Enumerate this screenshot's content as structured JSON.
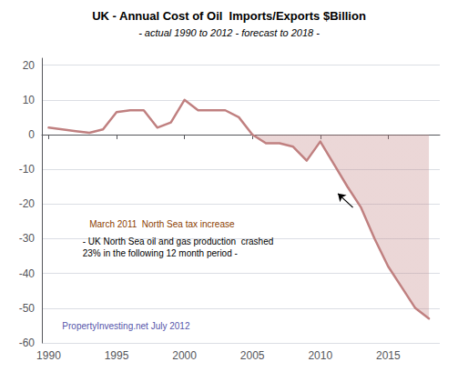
{
  "chart_data": {
    "type": "line",
    "title": "UK - Annual Cost of Oil  Imports/Exports $Billion",
    "subtitle": "- actual 1990 to 2012 - forecast to 2018 -",
    "x": [
      1990,
      1991,
      1992,
      1993,
      1994,
      1995,
      1996,
      1997,
      1998,
      1999,
      2000,
      2001,
      2002,
      2003,
      2004,
      2005,
      2006,
      2007,
      2008,
      2009,
      2010,
      2011,
      2012,
      2013,
      2014,
      2015,
      2016,
      2017,
      2018
    ],
    "values": [
      2.0,
      1.5,
      1.0,
      0.5,
      1.5,
      6.5,
      7.0,
      7.0,
      2.0,
      3.5,
      10.0,
      7.0,
      7.0,
      7.0,
      5.0,
      0.0,
      -2.5,
      -2.5,
      -3.5,
      -7.5,
      -2.0,
      -8.5,
      -15.0,
      -21.0,
      -30.0,
      -38.0,
      -44.0,
      -50.0,
      -53.0
    ],
    "color": "#c08080",
    "xlim": [
      1989.5,
      2018.8
    ],
    "ylim": [
      -60,
      22
    ],
    "xticks": [
      1990,
      1995,
      2000,
      2005,
      2010,
      2015
    ],
    "yticks": [
      -60,
      -50,
      -40,
      -30,
      -20,
      -10,
      0,
      10,
      20
    ],
    "grid": true,
    "annotations": [
      {
        "text": "March 2011  North Sea tax increase",
        "x": 1993.0,
        "y": -27,
        "color": "#8B4000"
      },
      {
        "text": "- UK North Sea oil and gas production  crashed",
        "x": 1992.5,
        "y": -32,
        "color": "#000000"
      },
      {
        "text": "23% in the following 12 month period -",
        "x": 1992.5,
        "y": -35.5,
        "color": "#000000"
      },
      {
        "text": "PropertyInvesting.net July 2012",
        "x": 1991.0,
        "y": -56.5,
        "color": "#5555aa"
      }
    ],
    "arrows": [
      {
        "from": [
          2012.4,
          -21.0
        ],
        "to": [
          2011.3,
          -17.0
        ],
        "color": "#000000"
      }
    ]
  }
}
